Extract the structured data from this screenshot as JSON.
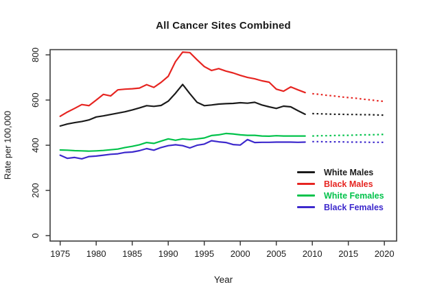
{
  "chart_data": {
    "type": "line",
    "title": "All Cancer Sites Combined",
    "xlabel": "Year",
    "ylabel": "Rate per 100,000",
    "x_ticks": [
      1975,
      1980,
      1985,
      1990,
      1995,
      2000,
      2005,
      2010,
      2015,
      2020
    ],
    "y_ticks": [
      0,
      200,
      400,
      600,
      800
    ],
    "xlim": [
      1973.6,
      2021.7
    ],
    "ylim": [
      -24,
      823
    ],
    "grid": "off",
    "legend_position": "right-center",
    "observed_style": "solid",
    "projected_style": "dotted",
    "years_observed": [
      1975,
      1976,
      1977,
      1978,
      1979,
      1980,
      1981,
      1982,
      1983,
      1984,
      1985,
      1986,
      1987,
      1988,
      1989,
      1990,
      1991,
      1992,
      1993,
      1994,
      1995,
      1996,
      1997,
      1998,
      1999,
      2000,
      2001,
      2002,
      2003,
      2004,
      2005,
      2006,
      2007,
      2008,
      2009
    ],
    "years_projected": [
      2010,
      2011,
      2012,
      2013,
      2014,
      2015,
      2016,
      2017,
      2018,
      2019,
      2020
    ],
    "series": [
      {
        "name": "White Males",
        "color": "#1a1a1a",
        "observed": [
          485,
          494,
          500,
          505,
          512,
          525,
          530,
          536,
          542,
          548,
          556,
          565,
          575,
          572,
          576,
          595,
          630,
          669,
          628,
          590,
          575,
          578,
          582,
          584,
          585,
          588,
          586,
          590,
          578,
          570,
          563,
          573,
          570,
          553,
          537
        ],
        "projected": [
          540,
          539,
          538,
          537,
          537,
          536,
          536,
          535,
          535,
          534,
          533
        ]
      },
      {
        "name": "Black Males",
        "color": "#e62420",
        "observed": [
          528,
          547,
          563,
          580,
          575,
          600,
          625,
          618,
          645,
          648,
          650,
          653,
          668,
          656,
          678,
          705,
          770,
          812,
          810,
          778,
          748,
          731,
          739,
          728,
          720,
          709,
          700,
          694,
          685,
          679,
          648,
          639,
          658,
          645,
          633
        ],
        "projected": [
          628,
          625,
          621,
          618,
          614,
          611,
          608,
          604,
          601,
          597,
          594
        ]
      },
      {
        "name": "White Females",
        "color": "#00c24a",
        "observed": [
          379,
          378,
          376,
          375,
          374,
          375,
          377,
          380,
          383,
          390,
          395,
          402,
          412,
          408,
          418,
          428,
          422,
          428,
          425,
          428,
          432,
          443,
          446,
          452,
          450,
          446,
          444,
          444,
          441,
          440,
          442,
          441,
          441,
          441,
          441
        ],
        "projected": [
          441,
          442,
          442,
          443,
          444,
          444,
          445,
          446,
          446,
          447,
          448
        ]
      },
      {
        "name": "Black Females",
        "color": "#3c28cc",
        "observed": [
          356,
          342,
          346,
          340,
          350,
          352,
          356,
          360,
          362,
          368,
          370,
          376,
          385,
          378,
          390,
          398,
          402,
          398,
          388,
          400,
          405,
          420,
          415,
          412,
          403,
          401,
          425,
          412,
          413,
          413,
          414,
          414,
          414,
          413,
          414
        ],
        "projected": [
          416,
          416,
          415,
          415,
          415,
          414,
          414,
          414,
          413,
          413,
          413
        ]
      }
    ]
  }
}
